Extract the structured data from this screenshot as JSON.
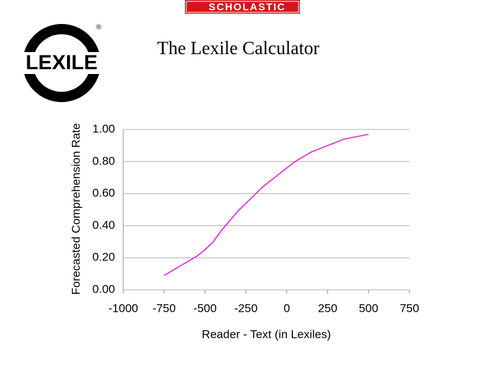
{
  "logos": {
    "publisher": "SCHOLASTIC",
    "brand": "LEXILE",
    "registered": "®"
  },
  "chart_data": {
    "type": "line",
    "title": "The Lexile Calculator",
    "x_label": "Reader - Text (in Lexiles)",
    "y_label": "Forecasted Comprehension Rate",
    "x": [
      -750,
      -700,
      -650,
      -600,
      -550,
      -500,
      -450,
      -400,
      -350,
      -300,
      -250,
      -200,
      -150,
      -100,
      -50,
      0,
      50,
      100,
      150,
      200,
      250,
      300,
      350,
      400,
      450,
      500
    ],
    "series": [
      {
        "color": "#e020e0",
        "values": [
          0.09,
          0.12,
          0.15,
          0.18,
          0.21,
          0.25,
          0.3,
          0.37,
          0.43,
          0.49,
          0.54,
          0.59,
          0.64,
          0.68,
          0.72,
          0.76,
          0.8,
          0.83,
          0.86,
          0.88,
          0.9,
          0.92,
          0.94,
          0.95,
          0.96,
          0.97
        ]
      }
    ],
    "xlim": [
      -1000,
      750
    ],
    "xticks": [
      -1000,
      -750,
      -500,
      -250,
      0,
      250,
      500,
      750
    ],
    "ylim": [
      0,
      1
    ],
    "yticks": [
      {
        "value": 0,
        "label": "0.00"
      },
      {
        "value": 0.2,
        "label": "0.20"
      },
      {
        "value": 0.4,
        "label": "0.40"
      },
      {
        "value": 0.6,
        "label": "0.60"
      },
      {
        "value": 0.8,
        "label": "0.80"
      },
      {
        "value": 1,
        "label": "1.00"
      }
    ],
    "grid": true
  }
}
